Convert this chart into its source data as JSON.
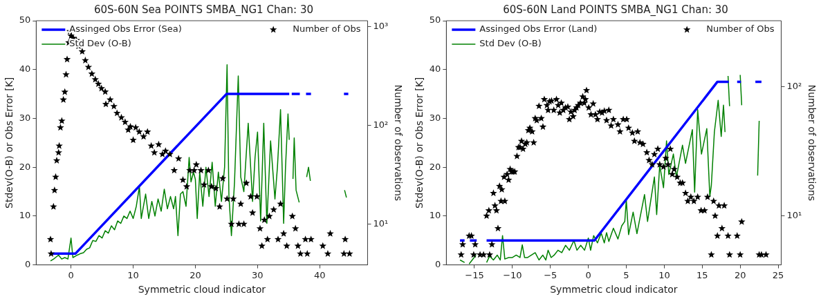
{
  "chart_data": [
    {
      "type": "line",
      "title": "60S-60N Sea POINTS SMBA_NG1 Chan: 30",
      "xlabel": "Symmetric cloud indicator",
      "ylabel": "Stdev(O-B) or Obs Error [K]",
      "y2label": "Number of observations",
      "xlim": [
        -5.6,
        47.7
      ],
      "xticks": [
        0,
        10,
        20,
        30,
        40
      ],
      "ylim": [
        0,
        50
      ],
      "yticks": [
        0,
        10,
        20,
        30,
        40,
        50
      ],
      "y2lim": [
        3.86,
        1150
      ],
      "y2ticks": [
        {
          "value": 10,
          "label": "10¹"
        },
        {
          "value": 100,
          "label": "10²"
        },
        {
          "value": 1000,
          "label": "10³"
        }
      ],
      "log": "y2",
      "grid": false,
      "legend": "top",
      "series": [
        {
          "name": "Assinged Obs Error (Sea)",
          "color": "#0000ff",
          "x": [
            -3.35,
            0.7,
            25,
            35.1,
            35.3,
            35.5,
            36.8,
            37.2,
            37.8,
            38.6,
            39,
            43.9,
            44.6
          ],
          "values": [
            2.3,
            2.3,
            35,
            35,
            null,
            35,
            35,
            null,
            35,
            35,
            null,
            35,
            35
          ]
        },
        {
          "name": "Std Dev (O-B)",
          "color": "#008000",
          "x": [
            -3.3,
            -2.8,
            -2.5,
            -2.0,
            -1.5,
            -1.0,
            -0.5,
            0.0,
            0.3,
            1.0,
            1.5,
            2.0,
            2.5,
            3.0,
            3.5,
            4.0,
            4.5,
            5.0,
            5.5,
            6.0,
            6.5,
            7.0,
            7.5,
            8.0,
            8.5,
            9.0,
            9.5,
            10.0,
            10.5,
            11.0,
            11.3,
            12.0,
            12.5,
            13.0,
            13.5,
            14.0,
            14.5,
            15.0,
            15.5,
            16.0,
            16.5,
            16.8,
            17.2,
            17.6,
            18.0,
            18.5,
            19.0,
            19.3,
            19.7,
            20.0,
            20.3,
            20.7,
            21.2,
            21.7,
            22.2,
            22.7,
            23.2,
            23.7,
            24.2,
            24.7,
            25.1,
            25.4,
            25.8,
            26.3,
            26.9,
            27.3,
            27.8,
            28.5,
            29.2,
            29.6,
            30.0,
            30.5,
            31.0,
            31.5,
            32.1,
            32.8,
            33.2,
            33.7,
            34.2,
            34.5,
            34.9,
            35.1,
            35.3,
            35.7,
            35.9,
            36.2,
            36.7,
            37.3,
            37.9,
            38.2,
            38.5,
            41.0,
            44.0,
            44.3
          ],
          "values": [
            0.8,
            1.2,
            1.5,
            2.0,
            1.2,
            1.5,
            1.2,
            5.5,
            1.5,
            2.0,
            2.3,
            2.5,
            3.2,
            3.5,
            5.0,
            4.8,
            6.0,
            5.5,
            7.0,
            6.5,
            8.0,
            7.2,
            9.0,
            8.5,
            10.0,
            9.5,
            11.0,
            9.5,
            12.0,
            16.0,
            9.5,
            14.5,
            9.5,
            13.0,
            10.0,
            13.5,
            11.0,
            15.5,
            11.5,
            14.0,
            11.5,
            14.0,
            6.0,
            14.5,
            15.0,
            12.0,
            22.0,
            17.0,
            19.0,
            17.5,
            9.5,
            19.0,
            12.0,
            20.0,
            14.0,
            21.0,
            12.0,
            19.0,
            13.0,
            20.0,
            41.0,
            14.0,
            6.0,
            17.0,
            38.7,
            18.0,
            15.0,
            29.0,
            13.0,
            22.0,
            27.2,
            9.0,
            29.0,
            8.5,
            25.4,
            13.5,
            20.0,
            31.8,
            8.5,
            20.0,
            30.9,
            25.6,
            null,
            17.6,
            26.0,
            15.3,
            12.8,
            null,
            18.0,
            20.0,
            17.2,
            null,
            15.3,
            13.8
          ]
        },
        {
          "name": "Number of Obs",
          "type": "scatter",
          "axis": "y2",
          "marker": "star",
          "color": "#000000",
          "x": [
            -3.3,
            -3.2,
            -2.82,
            -2.65,
            -2.47,
            -2.3,
            -2.0,
            -1.9,
            -1.7,
            -1.48,
            -1.23,
            -1.0,
            -0.8,
            -0.63,
            -0.35,
            -0.17,
            0.0,
            0.35,
            0.88,
            1.2,
            1.8,
            2.3,
            2.8,
            3.35,
            3.9,
            4.4,
            4.9,
            5.5,
            5.6,
            6.3,
            6.9,
            7.4,
            8.1,
            8.7,
            9.2,
            9.55,
            10.0,
            10.4,
            10.97,
            11.67,
            12.3,
            12.9,
            13.4,
            14.1,
            14.7,
            15.2,
            15.9,
            16.6,
            17.3,
            18.0,
            18.6,
            19.1,
            19.8,
            20.15,
            20.9,
            21.4,
            22.1,
            22.6,
            23.3,
            23.9,
            24.4,
            25.1,
            25.8,
            26.1,
            27.0,
            27.3,
            27.8,
            28.2,
            28.9,
            29.2,
            29.9,
            30.4,
            30.7,
            31.1,
            31.6,
            31.9,
            32.6,
            33.3,
            33.7,
            34.2,
            34.7,
            35.6,
            36.1,
            36.5,
            36.9,
            37.7,
            38.0,
            38.6,
            40.5,
            41.3,
            41.7,
            43.9,
            44.1,
            44.8
          ],
          "values": [
            7,
            5,
            15,
            22,
            30,
            44,
            53,
            62,
            95,
            111,
            182,
            218,
            327,
            467,
            690,
            896,
            807,
            766,
            727,
            638,
            560,
            455,
            389,
            333,
            292,
            263,
            237,
            219,
            164,
            182,
            156,
            133,
            120,
            108,
            90,
            97,
            71,
            95,
            86,
            77,
            86,
            62,
            53,
            64,
            51,
            55,
            51,
            35,
            46,
            28,
            24,
            35,
            35,
            40,
            35,
            25,
            35,
            24,
            23,
            15,
            29,
            18,
            10,
            18,
            10,
            16,
            10,
            26,
            19,
            13,
            19,
            9,
            6,
            11,
            7,
            12,
            14,
            7,
            16,
            8,
            6,
            12,
            9,
            6,
            5,
            7,
            5,
            7,
            6,
            5,
            8,
            5,
            7,
            5
          ]
        }
      ]
    },
    {
      "type": "line",
      "title": "60S-60N Land POINTS SMBA_NG1 Chan: 30",
      "xlabel": "Symmetric cloud indicator",
      "ylabel": "Stdev(O-B) or Obs Error [K]",
      "y2label": "Number of observations",
      "xlim": [
        -18.7,
        25.4
      ],
      "xticks": [
        {
          "value": -15,
          "label": "−15"
        },
        {
          "value": -10,
          "label": "−10"
        },
        {
          "value": -5,
          "label": "−5"
        },
        0,
        5,
        10,
        15,
        20,
        25
      ],
      "ylim": [
        0,
        50
      ],
      "yticks": [
        0,
        10,
        20,
        30,
        40,
        50
      ],
      "y2lim": [
        4.17,
        326
      ],
      "y2ticks": [
        {
          "value": 10,
          "label": "10¹"
        },
        {
          "value": 100,
          "label": "10²"
        }
      ],
      "log": "y2",
      "grid": false,
      "legend": "top",
      "series": [
        {
          "name": "Assinged Obs Error (Land)",
          "color": "#0000ff",
          "x": [
            -16.9,
            -16.3,
            -16,
            -15.6,
            -14.7,
            -14,
            -13.4,
            0.8,
            17,
            18.5,
            19,
            19.6,
            20.1,
            21,
            22.0,
            22.8
          ],
          "values": [
            5,
            5,
            null,
            5,
            5,
            null,
            5,
            5,
            37.5,
            37.5,
            null,
            37.5,
            37.5,
            null,
            37.5,
            37.5
          ]
        },
        {
          "name": "Std Dev (O-B)",
          "color": "#008000",
          "x": [
            -16.9,
            -16.3,
            -16.1,
            -15.7,
            -14.8,
            -14.1,
            -13.4,
            -13.0,
            -12.5,
            -12.0,
            -11.6,
            -11.3,
            -11.0,
            -10.5,
            -10.0,
            -9.5,
            -9.0,
            -8.7,
            -8.4,
            -8.0,
            -7.5,
            -7.0,
            -6.5,
            -6.0,
            -5.6,
            -5.3,
            -4.9,
            -4.5,
            -4.0,
            -3.5,
            -3.0,
            -2.5,
            -1.9,
            -1.5,
            -1.0,
            -0.5,
            0.0,
            0.3,
            0.7,
            1.2,
            1.7,
            2.1,
            2.4,
            2.7,
            3.3,
            3.9,
            4.4,
            4.8,
            5.0,
            5.3,
            5.9,
            6.4,
            6.8,
            7.4,
            7.8,
            8.3,
            8.7,
            9.0,
            9.4,
            9.9,
            10.3,
            10.6,
            11.2,
            11.6,
            12.4,
            12.8,
            13.4,
            13.7,
            14.0,
            14.4,
            14.9,
            15.6,
            16.0,
            16.2,
            16.6,
            17.1,
            17.5,
            17.8,
            18.0,
            18.2,
            18.4,
            18.6,
            19.3,
            20.0,
            20.2,
            21.0,
            22.3,
            22.5
          ],
          "values": [
            1.0,
            0.5,
            null,
            0.2,
            2.0,
            null,
            0.5,
            1.8,
            1.0,
            2.0,
            1.0,
            6.0,
            1.2,
            1.5,
            1.5,
            2.0,
            1.5,
            4.1,
            1.5,
            1.5,
            2.0,
            2.5,
            1.0,
            2.0,
            1.0,
            3.0,
            1.5,
            2.0,
            3.0,
            2.5,
            4.0,
            3.0,
            5.0,
            3.0,
            4.0,
            3.0,
            5.5,
            3.0,
            6.0,
            4.5,
            6.5,
            4.5,
            6.6,
            4.8,
            7.5,
            5.3,
            8.0,
            8.9,
            13.3,
            6.2,
            10.8,
            6.4,
            9.6,
            14.4,
            8.9,
            14.0,
            18.0,
            10.3,
            20.4,
            15.8,
            25.4,
            18.5,
            22.7,
            18.0,
            24.5,
            20.8,
            25.4,
            27.7,
            14.9,
            31.8,
            22.7,
            27.9,
            14.0,
            16.3,
            27.2,
            33.7,
            26.3,
            32.7,
            27.2,
            null,
            38.7,
            32.5,
            null,
            38.9,
            32.7,
            null,
            18.3,
            29.5
          ]
        },
        {
          "name": "Number of Obs",
          "type": "scatter",
          "axis": "y2",
          "marker": "star",
          "color": "#000000",
          "x": [
            -16.75,
            -16.55,
            -15.7,
            -15.4,
            -15.1,
            -14.9,
            -14.26,
            -13.8,
            -13.4,
            -13.1,
            -13.0,
            -12.7,
            -12.5,
            -12.3,
            -12.1,
            -11.9,
            -11.7,
            -11.5,
            -11.4,
            -11.1,
            -11.0,
            -10.7,
            -10.5,
            -10.3,
            -10.1,
            -9.9,
            -9.7,
            -9.4,
            -9.2,
            -9.0,
            -8.8,
            -8.6,
            -8.3,
            -8.1,
            -7.9,
            -7.7,
            -7.4,
            -7.2,
            -7.0,
            -6.8,
            -6.5,
            -6.2,
            -5.98,
            -5.8,
            -5.45,
            -5.3,
            -5.1,
            -4.85,
            -4.55,
            -4.2,
            -3.97,
            -3.76,
            -3.56,
            -3.3,
            -3.0,
            -2.7,
            -2.5,
            -2.3,
            -2.0,
            -1.8,
            -1.56,
            -1.33,
            -1.04,
            -0.74,
            -0.54,
            -0.39,
            -0.24,
            0.05,
            0.35,
            0.64,
            0.93,
            1.2,
            1.5,
            1.8,
            2.1,
            2.4,
            2.7,
            3.0,
            3.3,
            3.9,
            4.17,
            4.6,
            5.05,
            5.3,
            5.8,
            6.07,
            6.5,
            6.8,
            7.2,
            7.7,
            8.0,
            8.4,
            8.7,
            9.15,
            9.4,
            9.9,
            10.2,
            10.5,
            10.8,
            11.05,
            11.3,
            11.7,
            12.1,
            12.4,
            12.8,
            13.1,
            13.5,
            13.9,
            14.4,
            14.85,
            15.3,
            15.7,
            16.2,
            16.5,
            16.7,
            17.0,
            17.2,
            17.6,
            17.9,
            18.4,
            18.6,
            19.6,
            20.0,
            20.2,
            22.5,
            22.8,
            23.4
          ],
          "values": [
            5,
            6,
            7,
            7,
            5,
            6,
            5,
            5,
            10,
            11,
            5,
            6,
            15,
            12,
            11,
            8,
            17,
            13,
            16,
            20,
            13,
            21,
            19,
            23,
            22,
            22,
            22,
            29,
            34,
            34,
            38,
            33,
            36,
            37,
            46,
            48,
            45,
            37,
            57,
            55,
            71,
            57,
            49,
            80,
            72,
            66,
            77,
            78,
            66,
            80,
            72,
            63,
            75,
            66,
            69,
            70,
            56,
            64,
            59,
            66,
            69,
            72,
            75,
            84,
            75,
            80,
            94,
            69,
            61,
            74,
            61,
            56,
            64,
            63,
            65,
            55,
            66,
            50,
            56,
            51,
            45,
            56,
            56,
            48,
            44,
            38,
            45,
            37,
            36,
            31,
            27,
            25,
            30,
            33,
            25,
            24,
            28,
            25,
            33,
            21,
            23,
            20,
            18,
            18,
            15,
            13,
            14,
            13,
            14,
            11,
            11,
            14,
            5,
            13,
            10,
            7,
            12,
            8,
            12,
            7,
            5,
            7,
            5,
            9,
            5,
            5,
            5
          ]
        }
      ]
    }
  ]
}
